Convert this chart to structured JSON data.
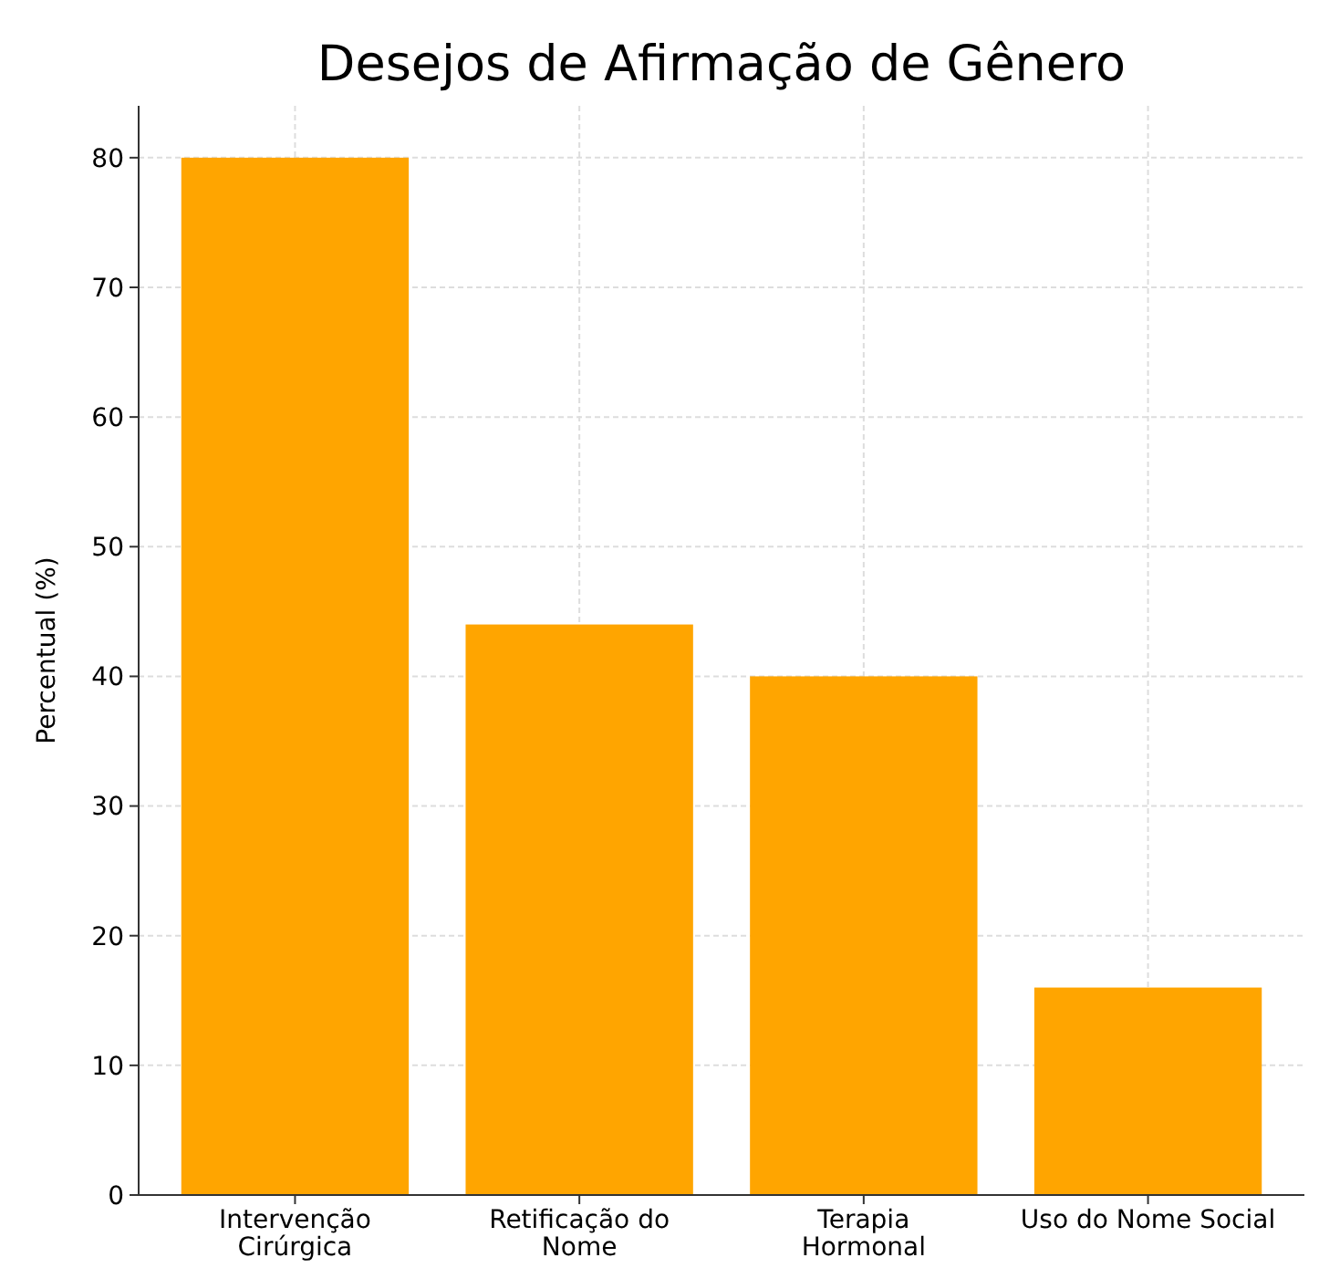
{
  "chart_data": {
    "type": "bar",
    "title": "Desejos de Afirmação de Gênero",
    "ylabel": "Percentual (%)",
    "categories": [
      "Intervenção\nCirúrgica",
      "Retificação do\nNome",
      "Terapia\nHormonal",
      "Uso do Nome Social"
    ],
    "values": [
      80,
      44,
      40,
      16
    ],
    "color": "#ffa500",
    "ylim": [
      0,
      84
    ],
    "yticks": [
      0,
      10,
      20,
      30,
      40,
      50,
      60,
      70,
      80
    ],
    "grid": true
  }
}
